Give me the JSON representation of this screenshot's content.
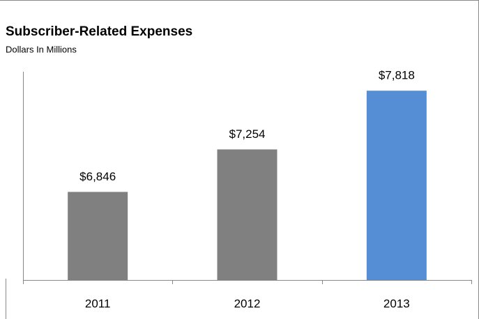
{
  "chart_data": {
    "type": "bar",
    "title": "Subscriber-Related Expenses",
    "subtitle": "Dollars In Millions",
    "categories": [
      "2011",
      "2012",
      "2013"
    ],
    "values": [
      6846,
      7254,
      7818
    ],
    "value_labels": [
      "$6,846",
      "$7,254",
      "$7,818"
    ],
    "colors": [
      "#808080",
      "#808080",
      "#558ed5"
    ],
    "ylim": [
      6000,
      8000
    ]
  }
}
